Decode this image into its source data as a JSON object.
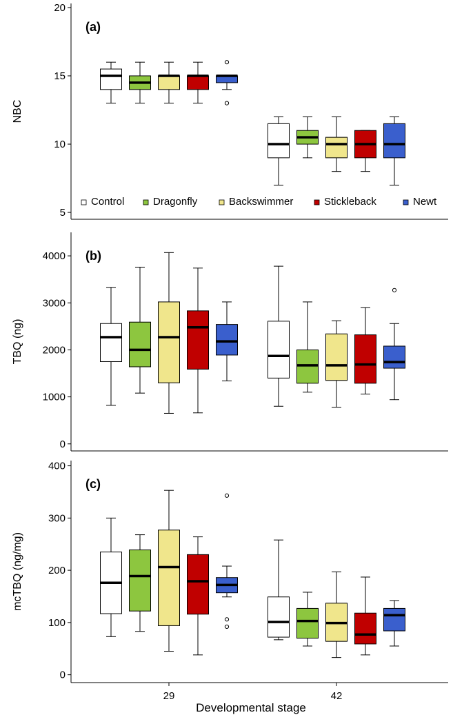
{
  "figure": {
    "xlabel": "Developmental stage",
    "x_categories": [
      "29",
      "42"
    ]
  },
  "legend": {
    "entries": [
      {
        "label": "Control",
        "color": "#ffffff"
      },
      {
        "label": "Dragonfly",
        "color": "#8dc63f"
      },
      {
        "label": "Backswimmer",
        "color": "#f0e68c"
      },
      {
        "label": "Stickleback",
        "color": "#c00000"
      },
      {
        "label": "Newt",
        "color": "#3a5fcd"
      }
    ]
  },
  "chart_data": [
    {
      "type": "box",
      "panel_label": "(a)",
      "ylabel": "NBC",
      "ylim": [
        4.5,
        20.3
      ],
      "yticks": [
        5,
        10,
        15,
        20
      ],
      "categories": [
        "29",
        "42"
      ],
      "series": [
        {
          "name": "Control",
          "color": "#ffffff",
          "boxes": [
            {
              "min": 13,
              "q1": 14,
              "median": 15,
              "q3": 15.5,
              "max": 16,
              "outliers": []
            },
            {
              "min": 7,
              "q1": 9,
              "median": 10,
              "q3": 11.5,
              "max": 12,
              "outliers": []
            }
          ]
        },
        {
          "name": "Dragonfly",
          "color": "#8dc63f",
          "boxes": [
            {
              "min": 13,
              "q1": 14,
              "median": 14.5,
              "q3": 15,
              "max": 16,
              "outliers": []
            },
            {
              "min": 9,
              "q1": 10,
              "median": 10.5,
              "q3": 11,
              "max": 12,
              "outliers": []
            }
          ]
        },
        {
          "name": "Backswimmer",
          "color": "#f0e68c",
          "boxes": [
            {
              "min": 13,
              "q1": 14,
              "median": 15,
              "q3": 15,
              "max": 16,
              "outliers": []
            },
            {
              "min": 8,
              "q1": 9,
              "median": 10,
              "q3": 10.5,
              "max": 12,
              "outliers": []
            }
          ]
        },
        {
          "name": "Stickleback",
          "color": "#c00000",
          "boxes": [
            {
              "min": 13,
              "q1": 14,
              "median": 15,
              "q3": 15,
              "max": 16,
              "outliers": []
            },
            {
              "min": 8,
              "q1": 9,
              "median": 10,
              "q3": 11,
              "max": 11,
              "outliers": []
            }
          ]
        },
        {
          "name": "Newt",
          "color": "#3a5fcd",
          "boxes": [
            {
              "min": 14,
              "q1": 14.5,
              "median": 15,
              "q3": 15,
              "max": 15,
              "outliers": [
                16,
                13
              ]
            },
            {
              "min": 7,
              "q1": 9,
              "median": 10,
              "q3": 11.5,
              "max": 12,
              "outliers": []
            }
          ]
        }
      ]
    },
    {
      "type": "box",
      "panel_label": "(b)",
      "ylabel": "TBQ (ng)",
      "ylim": [
        -150,
        4500
      ],
      "yticks": [
        0,
        1000,
        2000,
        3000,
        4000
      ],
      "categories": [
        "29",
        "42"
      ],
      "series": [
        {
          "name": "Control",
          "color": "#ffffff",
          "boxes": [
            {
              "min": 820,
              "q1": 1750,
              "median": 2270,
              "q3": 2560,
              "max": 3330,
              "outliers": []
            },
            {
              "min": 800,
              "q1": 1400,
              "median": 1870,
              "q3": 2610,
              "max": 3780,
              "outliers": []
            }
          ]
        },
        {
          "name": "Dragonfly",
          "color": "#8dc63f",
          "boxes": [
            {
              "min": 1080,
              "q1": 1640,
              "median": 2000,
              "q3": 2590,
              "max": 3760,
              "outliers": []
            },
            {
              "min": 1100,
              "q1": 1290,
              "median": 1670,
              "q3": 2000,
              "max": 3020,
              "outliers": []
            }
          ]
        },
        {
          "name": "Backswimmer",
          "color": "#f0e68c",
          "boxes": [
            {
              "min": 650,
              "q1": 1300,
              "median": 2270,
              "q3": 3020,
              "max": 4070,
              "outliers": []
            },
            {
              "min": 780,
              "q1": 1350,
              "median": 1670,
              "q3": 2340,
              "max": 2620,
              "outliers": []
            }
          ]
        },
        {
          "name": "Stickleback",
          "color": "#c00000",
          "boxes": [
            {
              "min": 660,
              "q1": 1590,
              "median": 2480,
              "q3": 2830,
              "max": 3740,
              "outliers": []
            },
            {
              "min": 1060,
              "q1": 1290,
              "median": 1690,
              "q3": 2320,
              "max": 2900,
              "outliers": []
            }
          ]
        },
        {
          "name": "Newt",
          "color": "#3a5fcd",
          "boxes": [
            {
              "min": 1340,
              "q1": 1890,
              "median": 2180,
              "q3": 2540,
              "max": 3020,
              "outliers": []
            },
            {
              "min": 940,
              "q1": 1610,
              "median": 1740,
              "q3": 2080,
              "max": 2560,
              "outliers": [
                3270
              ]
            }
          ]
        }
      ]
    },
    {
      "type": "box",
      "panel_label": "(c)",
      "ylabel": "mcTBQ (ng/mg)",
      "ylim": [
        -15,
        410
      ],
      "yticks": [
        0,
        100,
        200,
        300,
        400
      ],
      "categories": [
        "29",
        "42"
      ],
      "series": [
        {
          "name": "Control",
          "color": "#ffffff",
          "boxes": [
            {
              "min": 73,
              "q1": 117,
              "median": 176,
              "q3": 235,
              "max": 300,
              "outliers": []
            },
            {
              "min": 67,
              "q1": 72,
              "median": 101,
              "q3": 149,
              "max": 258,
              "outliers": []
            }
          ]
        },
        {
          "name": "Dragonfly",
          "color": "#8dc63f",
          "boxes": [
            {
              "min": 83,
              "q1": 122,
              "median": 189,
              "q3": 239,
              "max": 268,
              "outliers": []
            },
            {
              "min": 55,
              "q1": 70,
              "median": 103,
              "q3": 127,
              "max": 158,
              "outliers": []
            }
          ]
        },
        {
          "name": "Backswimmer",
          "color": "#f0e68c",
          "boxes": [
            {
              "min": 45,
              "q1": 94,
              "median": 206,
              "q3": 277,
              "max": 353,
              "outliers": []
            },
            {
              "min": 33,
              "q1": 64,
              "median": 99,
              "q3": 137,
              "max": 197,
              "outliers": []
            }
          ]
        },
        {
          "name": "Stickleback",
          "color": "#c00000",
          "boxes": [
            {
              "min": 38,
              "q1": 116,
              "median": 179,
              "q3": 230,
              "max": 264,
              "outliers": []
            },
            {
              "min": 38,
              "q1": 59,
              "median": 77,
              "q3": 118,
              "max": 187,
              "outliers": []
            }
          ]
        },
        {
          "name": "Newt",
          "color": "#3a5fcd",
          "boxes": [
            {
              "min": 149,
              "q1": 157,
              "median": 172,
              "q3": 186,
              "max": 208,
              "outliers": [
                343,
                106,
                92
              ]
            },
            {
              "min": 55,
              "q1": 84,
              "median": 114,
              "q3": 127,
              "max": 142,
              "outliers": []
            }
          ]
        }
      ]
    }
  ]
}
